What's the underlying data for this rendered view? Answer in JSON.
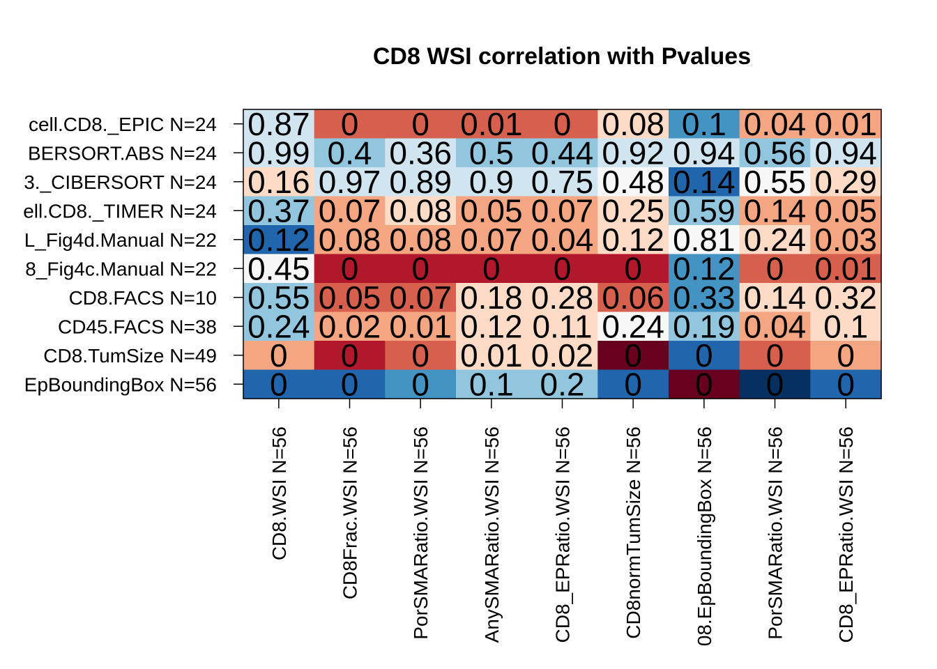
{
  "chart_data": {
    "type": "heatmap",
    "title": "CD8 WSI correlation with Pvalues",
    "rows": [
      "cell.CD8._EPIC N=24",
      "BERSORT.ABS N=24",
      "3._CIBERSORT N=24",
      "ell.CD8._TIMER N=24",
      "L_Fig4d.Manual N=22",
      "8_Fig4c.Manual N=22",
      "CD8.FACS N=10",
      "CD45.FACS N=38",
      "CD8.TumSize N=49",
      "EpBoundingBox N=56"
    ],
    "columns": [
      "CD8.WSI N=56",
      "CD8Frac.WSI N=56",
      "PorSMARatio.WSI N=56",
      "AnySMARatio.WSI N=56",
      "CD8_EPRatio.WSI N=56",
      "CD8normTumSize N=56",
      "08.EpBoundingBox N=56",
      "PorSMARatio.WSI N=56",
      "CD8_EPRatio.WSI N=56"
    ],
    "labels": [
      [
        "0.87",
        "0",
        "0",
        "0.01",
        "0",
        "0.08",
        "0.1",
        "0.04",
        "0.01"
      ],
      [
        "0.99",
        "0.4",
        "0.36",
        "0.5",
        "0.44",
        "0.92",
        "0.94",
        "0.56",
        "0.94"
      ],
      [
        "0.16",
        "0.97",
        "0.89",
        "0.9",
        "0.75",
        "0.48",
        "0.14",
        "0.55",
        "0.29"
      ],
      [
        "0.37",
        "0.07",
        "0.08",
        "0.05",
        "0.07",
        "0.25",
        "0.59",
        "0.14",
        "0.05"
      ],
      [
        "0.12",
        "0.08",
        "0.08",
        "0.07",
        "0.04",
        "0.12",
        "0.81",
        "0.24",
        "0.03"
      ],
      [
        "0.45",
        "0",
        "0",
        "0",
        "0",
        "0",
        "0.12",
        "0",
        "0.01"
      ],
      [
        "0.55",
        "0.05",
        "0.07",
        "0.18",
        "0.28",
        "0.06",
        "0.33",
        "0.14",
        "0.32"
      ],
      [
        "0.24",
        "0.02",
        "0.01",
        "0.12",
        "0.11",
        "0.24",
        "0.19",
        "0.04",
        "0.1"
      ],
      [
        "0",
        "0",
        "0",
        "0.01",
        "0.02",
        "0",
        "0",
        "0",
        "0"
      ],
      [
        "0",
        "0",
        "0",
        "0.1",
        "0.2",
        "0",
        "0",
        "0",
        "0"
      ]
    ],
    "colors": [
      [
        "#d1e5f0",
        "#d6604d",
        "#d6604d",
        "#d6604d",
        "#d6604d",
        "#fddbc7",
        "#4393c3",
        "#f4a582",
        "#f4a582"
      ],
      [
        "#d1e5f0",
        "#92c5de",
        "#d1e5f0",
        "#92c5de",
        "#92c5de",
        "#d1e5f0",
        "#d1e5f0",
        "#92c5de",
        "#d1e5f0"
      ],
      [
        "#fddbc7",
        "#d1e5f0",
        "#d1e5f0",
        "#d1e5f0",
        "#d1e5f0",
        "#f7f7f7",
        "#2166ac",
        "#f7f7f7",
        "#fddbc7"
      ],
      [
        "#92c5de",
        "#f4a582",
        "#fddbc7",
        "#f4a582",
        "#f4a582",
        "#fddbc7",
        "#92c5de",
        "#f4a582",
        "#f4a582"
      ],
      [
        "#2166ac",
        "#f4a582",
        "#f4a582",
        "#f4a582",
        "#f4a582",
        "#fddbc7",
        "#f7f7f7",
        "#fddbc7",
        "#f4a582"
      ],
      [
        "#f7f7f7",
        "#b2182b",
        "#b2182b",
        "#b2182b",
        "#b2182b",
        "#b2182b",
        "#4393c3",
        "#d6604d",
        "#d6604d"
      ],
      [
        "#92c5de",
        "#d6604d",
        "#d6604d",
        "#fddbc7",
        "#fddbc7",
        "#d6604d",
        "#4393c3",
        "#fddbc7",
        "#fddbc7"
      ],
      [
        "#92c5de",
        "#f4a582",
        "#f4a582",
        "#fddbc7",
        "#fddbc7",
        "#f7f7f7",
        "#92c5de",
        "#f4a582",
        "#fddbc7"
      ],
      [
        "#f4a582",
        "#b2182b",
        "#d6604d",
        "#fddbc7",
        "#fddbc7",
        "#67001f",
        "#2166ac",
        "#d6604d",
        "#f4a582"
      ],
      [
        "#2166ac",
        "#2166ac",
        "#4393c3",
        "#92c5de",
        "#92c5de",
        "#2166ac",
        "#67001f",
        "#053061",
        "#2166ac"
      ]
    ]
  }
}
